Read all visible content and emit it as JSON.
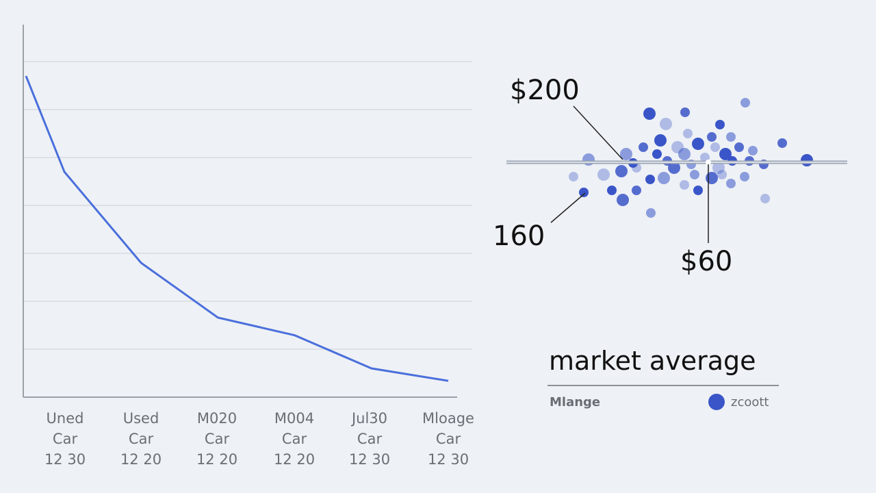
{
  "chart_data": [
    {
      "type": "line",
      "categories": [
        [
          "Uned",
          "Car",
          "12 30"
        ],
        [
          "Used",
          "Car",
          "12 20"
        ],
        [
          "M020",
          "Car",
          "12 20"
        ],
        [
          "M004",
          "Car",
          "12 20"
        ],
        [
          "Jul30",
          "Car",
          "12 30"
        ],
        [
          "Mloage",
          "Car",
          "12 30"
        ]
      ],
      "x": [
        0,
        0.5,
        1.5,
        2.5,
        3.5,
        4.5,
        5.5
      ],
      "values": [
        6.7,
        4.7,
        2.8,
        1.66,
        1.29,
        0.6,
        0.34
      ],
      "ylim": [
        0,
        7.8
      ],
      "xlim": [
        0,
        5.7
      ],
      "grid": true,
      "color": "#4a6fdc"
    },
    {
      "type": "scatter",
      "xlim": [
        0,
        100
      ],
      "ylim": [
        -20,
        20
      ],
      "reference_line_y": 0,
      "color": "#3a55c8",
      "points": [
        [
          41.8,
          14.2
        ],
        [
          52.2,
          14.6
        ],
        [
          69.8,
          17.4
        ],
        [
          46.6,
          11.2
        ],
        [
          62.4,
          11
        ],
        [
          80.6,
          5.6
        ],
        [
          24,
          0.8
        ],
        [
          19.6,
          -4.2
        ],
        [
          22.6,
          -8.8
        ],
        [
          34,
          -11
        ],
        [
          42.2,
          -14.8
        ],
        [
          75.6,
          -10.6
        ],
        [
          87.8,
          0.6
        ],
        [
          75.2,
          -0.6
        ],
        [
          69.6,
          -4.2
        ],
        [
          28.4,
          -3.6
        ],
        [
          30.8,
          -8.2
        ],
        [
          38,
          -8.2
        ],
        [
          46,
          -4.6
        ],
        [
          52,
          -6.6
        ],
        [
          56,
          -8.2
        ],
        [
          60,
          -4.6
        ],
        [
          65.6,
          -6.2
        ],
        [
          53,
          8.4
        ],
        [
          56,
          5.4
        ],
        [
          60,
          7.4
        ],
        [
          65.6,
          7.4
        ],
        [
          50,
          4.4
        ],
        [
          44,
          2.4
        ],
        [
          40,
          4.4
        ],
        [
          35,
          2.4
        ],
        [
          38,
          -1.6
        ],
        [
          42,
          -5
        ],
        [
          49,
          -1.6
        ],
        [
          54,
          -0.6
        ],
        [
          58,
          1.4
        ],
        [
          64,
          2.4
        ],
        [
          68,
          4.4
        ],
        [
          72,
          3.4
        ],
        [
          62,
          -1.6
        ],
        [
          37,
          -0.2
        ],
        [
          47,
          0.4
        ],
        [
          52,
          2.4
        ],
        [
          61,
          4.4
        ],
        [
          66,
          0.4
        ],
        [
          33.6,
          -2.6
        ],
        [
          55,
          -3.6
        ],
        [
          63,
          -3.6
        ],
        [
          45,
          6.4
        ],
        [
          71,
          0.4
        ]
      ],
      "annotations": {
        "top": "$200",
        "left": "160",
        "bottom": "$60"
      },
      "title": "market average",
      "legend": {
        "left_label": "Mlange",
        "right_label": "zcoott",
        "placement": "bottom"
      }
    }
  ]
}
